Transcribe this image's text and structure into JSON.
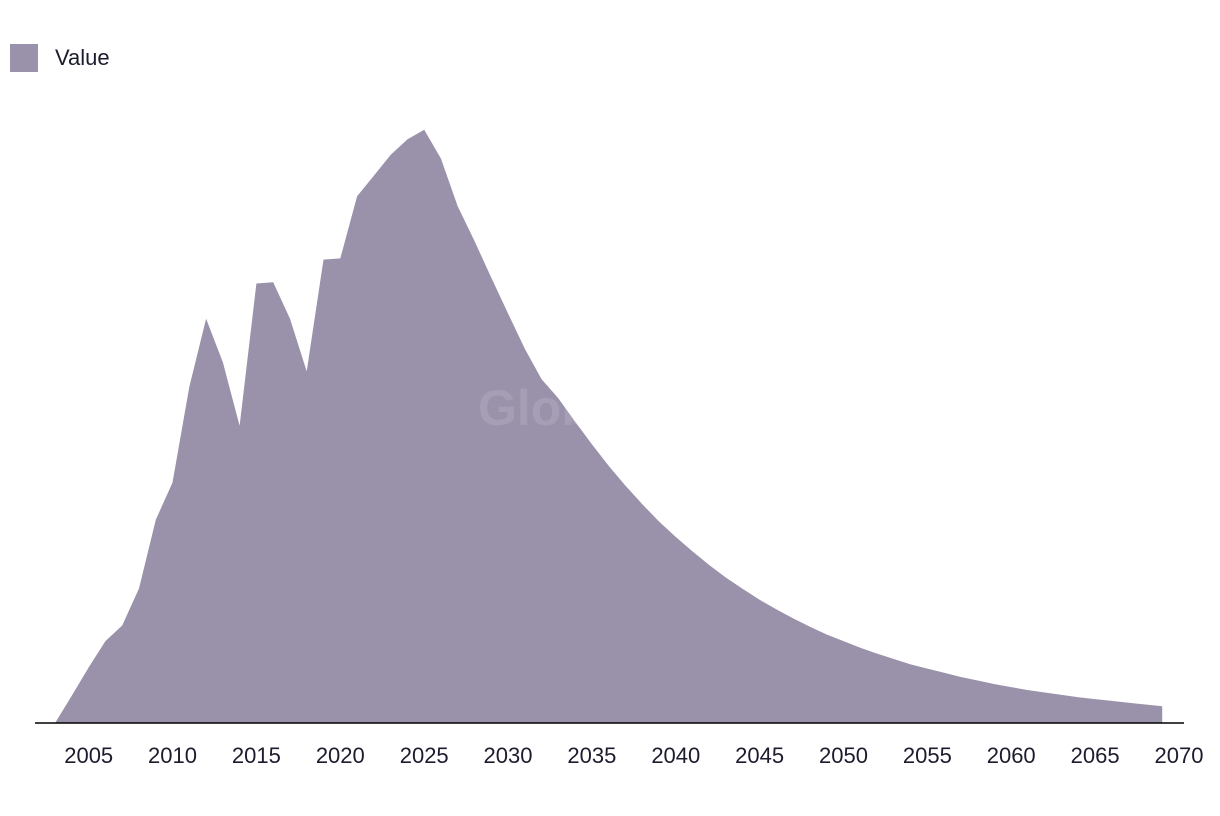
{
  "legend": {
    "label": "Value"
  },
  "watermark": "GlobalData",
  "colors": {
    "area": "#9a91aa",
    "axis": "#000000",
    "watermark": "#ffffff"
  },
  "chart_data": {
    "type": "area",
    "title": "",
    "xlabel": "",
    "ylabel": "",
    "xlim": [
      2001.8,
      2070.3
    ],
    "ylim": [
      0,
      100
    ],
    "xticks": [
      2005,
      2010,
      2015,
      2020,
      2025,
      2030,
      2035,
      2040,
      2045,
      2050,
      2055,
      2060,
      2065,
      2070
    ],
    "grid": false,
    "legend_position": "top-left",
    "series": [
      {
        "name": "Value",
        "x": [
          2003,
          2004,
          2005,
          2006,
          2007,
          2008,
          2009,
          2010,
          2011,
          2012,
          2013,
          2014,
          2015,
          2016,
          2017,
          2018,
          2019,
          2020,
          2021,
          2022,
          2023,
          2024,
          2025,
          2026,
          2027,
          2028,
          2029,
          2030,
          2031,
          2032,
          2033,
          2034,
          2035,
          2036,
          2037,
          2038,
          2039,
          2040,
          2041,
          2042,
          2043,
          2044,
          2045,
          2046,
          2047,
          2048,
          2049,
          2050,
          2051,
          2052,
          2053,
          2054,
          2055,
          2056,
          2057,
          2058,
          2059,
          2060,
          2061,
          2062,
          2063,
          2064,
          2065,
          2066,
          2067,
          2068,
          2069
        ],
        "values": [
          0,
          4.6,
          9.3,
          13.7,
          16.3,
          22.5,
          34,
          40.2,
          56.2,
          67.6,
          60.3,
          49.7,
          73.5,
          73.7,
          67.6,
          58.8,
          77.5,
          77.7,
          88.1,
          91.5,
          95,
          97.6,
          99.2,
          94.4,
          86.4,
          80.6,
          74.5,
          68.5,
          62.6,
          57.5,
          54.3,
          50.4,
          46.6,
          43,
          39.7,
          36.6,
          33.7,
          31.1,
          28.7,
          26.4,
          24.3,
          22.4,
          20.6,
          19,
          17.5,
          16.1,
          14.8,
          13.7,
          12.6,
          11.6,
          10.7,
          9.8,
          9.1,
          8.4,
          7.7,
          7.1,
          6.5,
          6,
          5.5,
          5.1,
          4.7,
          4.3,
          4,
          3.7,
          3.4,
          3.1,
          2.8
        ]
      }
    ]
  }
}
